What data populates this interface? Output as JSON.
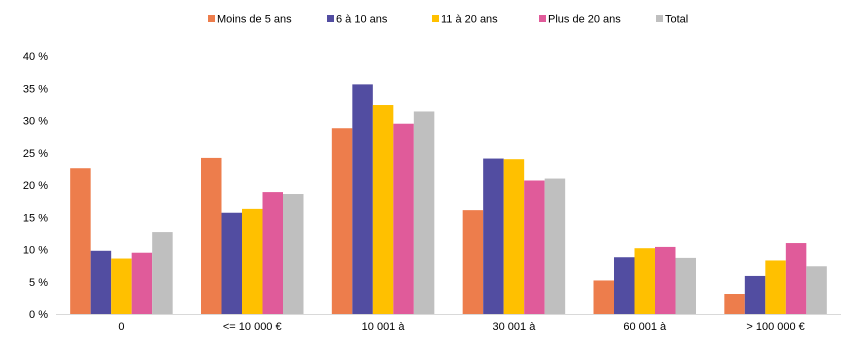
{
  "chart_data": {
    "type": "bar",
    "title": "",
    "xlabel": "",
    "ylabel": "",
    "ylim": [
      0,
      40
    ],
    "y_ticks": [
      0,
      5,
      10,
      15,
      20,
      25,
      30,
      35,
      40
    ],
    "y_tick_labels": [
      "0 %",
      "5 %",
      "10 %",
      "15 %",
      "20 %",
      "25 %",
      "30 %",
      "35 %",
      "40 %"
    ],
    "grid": false,
    "legend_position": "top",
    "categories": [
      "0",
      "<= 10 000 €",
      "10 001 à",
      "30 001 à",
      "60 001 à",
      "> 100 000 €"
    ],
    "series": [
      {
        "name": "Moins de 5 ans",
        "color": "#ED7D4C",
        "values": [
          22.6,
          24.2,
          28.8,
          16.1,
          5.2,
          3.1
        ]
      },
      {
        "name": "6 à 10 ans",
        "color": "#524DA1",
        "values": [
          9.8,
          15.7,
          35.6,
          24.1,
          8.8,
          5.9
        ]
      },
      {
        "name": "11 à 20 ans",
        "color": "#FFC000",
        "values": [
          8.6,
          16.3,
          32.4,
          24.0,
          10.2,
          8.3
        ]
      },
      {
        "name": "Plus de 20 ans",
        "color": "#E05B9A",
        "values": [
          9.5,
          18.9,
          29.5,
          20.7,
          10.4,
          11.0
        ]
      },
      {
        "name": "Total",
        "color": "#BFBFBF",
        "values": [
          12.7,
          18.6,
          31.4,
          21.0,
          8.7,
          7.4
        ]
      }
    ]
  }
}
